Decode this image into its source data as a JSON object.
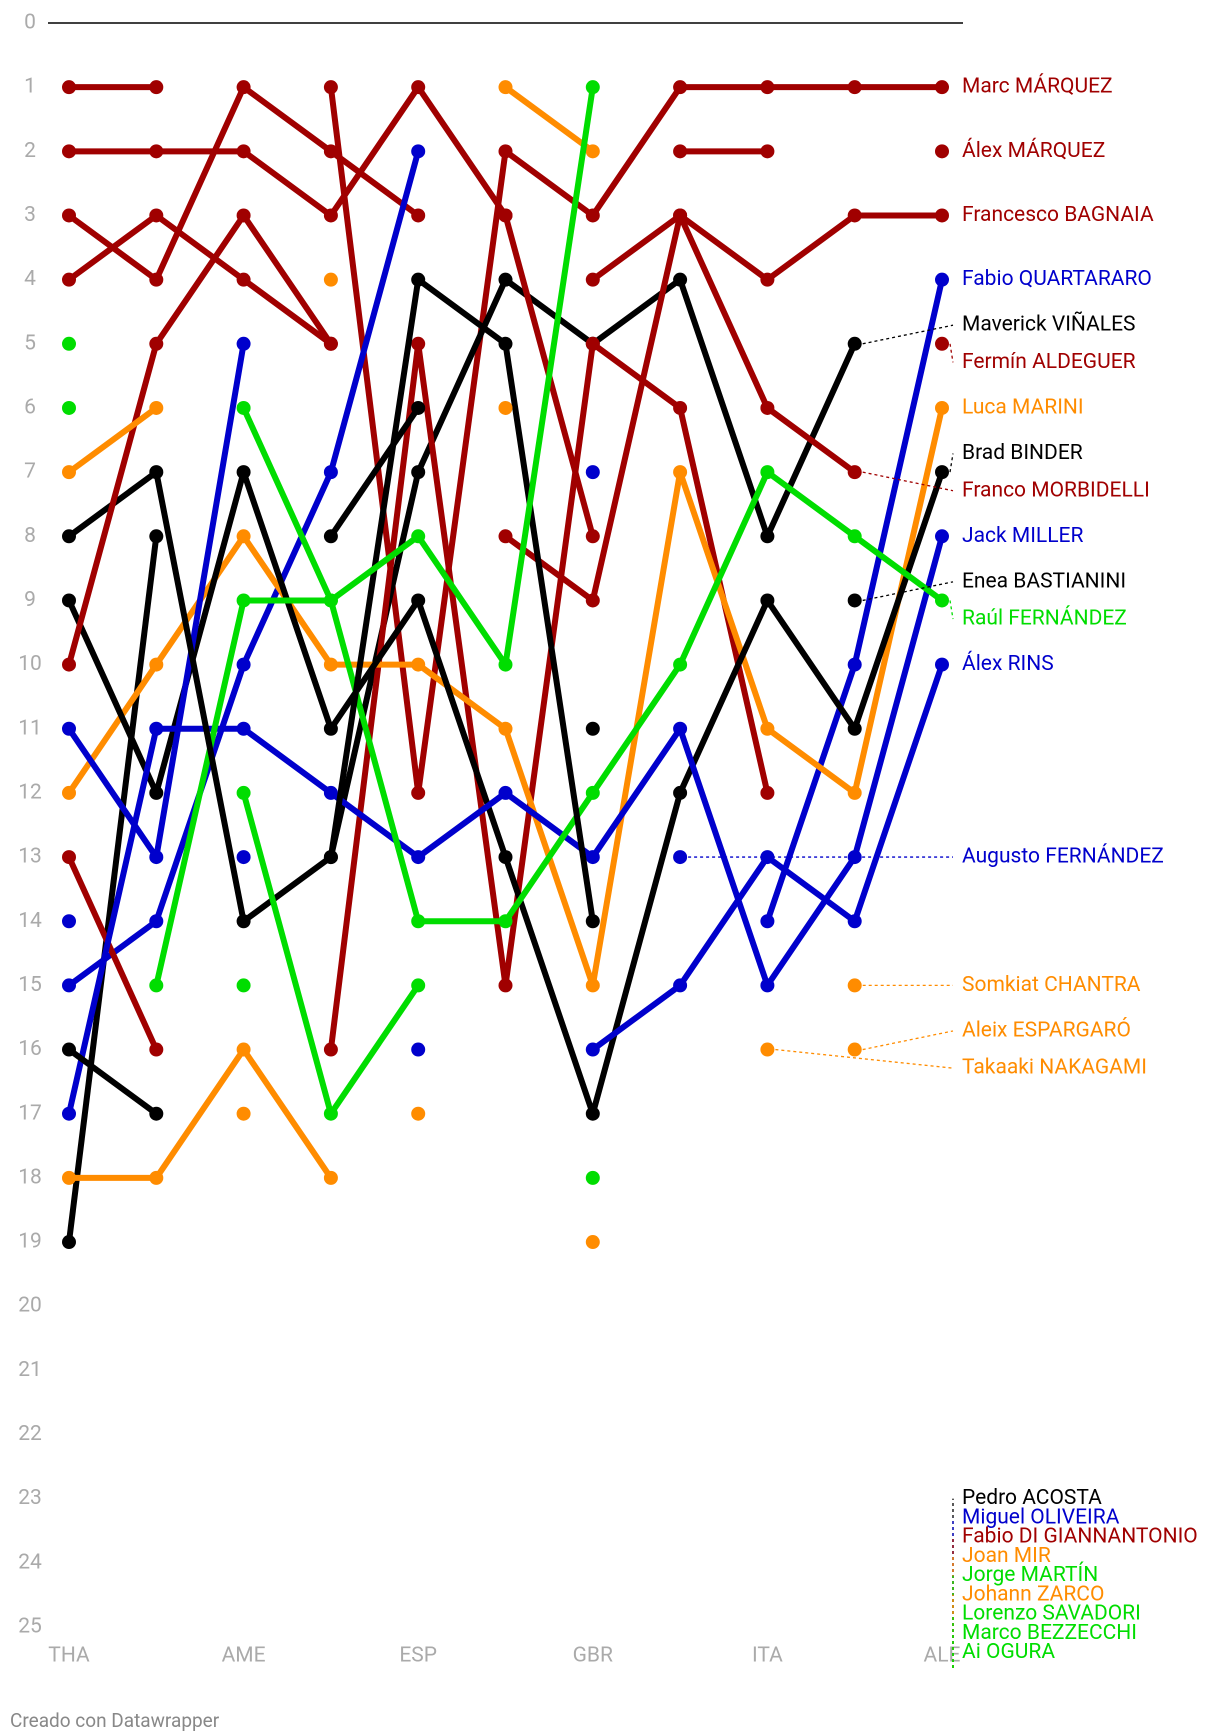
{
  "chart_data": {
    "type": "bump",
    "y_reversed": true,
    "footer": "Creado con Datawrapper",
    "categories": [
      "THA",
      null,
      "AME",
      null,
      "ESP",
      null,
      "GBR",
      null,
      "ITA",
      null,
      "ALE"
    ],
    "ylim": [
      0,
      25
    ],
    "yticks": [
      0,
      1,
      2,
      3,
      4,
      5,
      6,
      7,
      8,
      9,
      10,
      11,
      12,
      13,
      14,
      15,
      16,
      17,
      18,
      19,
      20,
      21,
      22,
      23,
      24,
      25
    ],
    "series": [
      {
        "name": "Marc MÁRQUEZ",
        "color": "#a00000",
        "values": [
          1,
          1,
          null,
          1,
          12,
          2,
          3,
          1,
          1,
          1,
          1
        ]
      },
      {
        "name": "Álex MÁRQUEZ",
        "color": "#a00000",
        "values": [
          2,
          2,
          2,
          3,
          1,
          3,
          null,
          2,
          2,
          null,
          2
        ]
      },
      {
        "name": "Francesco BAGNAIA",
        "color": "#a00000",
        "values": [
          3,
          4,
          1,
          2,
          3,
          null,
          4,
          3,
          4,
          3,
          3
        ]
      },
      {
        "name": "Fabio QUARTARARO",
        "color": "#0000cc",
        "values": [
          15,
          14,
          10,
          7,
          2,
          null,
          7,
          null,
          14,
          10,
          4
        ]
      },
      {
        "name": "Maverick VIÑALES",
        "color": "#000000",
        "values": [
          19,
          8,
          null,
          13,
          7,
          4,
          5,
          4,
          8,
          5,
          null
        ]
      },
      {
        "name": "Fermín ALDEGUER",
        "color": "#a00000",
        "values": [
          13,
          16,
          null,
          16,
          5,
          15,
          5,
          6,
          12,
          null,
          5
        ]
      },
      {
        "name": "Luca MARINI",
        "color": "#ff8c00",
        "values": [
          12,
          10,
          8,
          10,
          10,
          11,
          15,
          7,
          11,
          12,
          6
        ]
      },
      {
        "name": "Brad BINDER",
        "color": "#000000",
        "values": [
          9,
          12,
          7,
          11,
          9,
          13,
          17,
          12,
          9,
          11,
          7
        ]
      },
      {
        "name": "Franco MORBIDELLI",
        "color": "#a00000",
        "values": [
          4,
          3,
          4,
          5,
          null,
          8,
          9,
          3,
          6,
          7,
          null
        ]
      },
      {
        "name": "Jack MILLER",
        "color": "#0000cc",
        "values": [
          17,
          11,
          11,
          12,
          13,
          12,
          13,
          11,
          15,
          13,
          8
        ]
      },
      {
        "name": "Enea BASTIANINI",
        "color": "#000000",
        "values": [
          16,
          17,
          null,
          8,
          6,
          null,
          11,
          null,
          null,
          9,
          null
        ]
      },
      {
        "name": "Raúl FERNÁNDEZ",
        "color": "#00dd00",
        "values": [
          null,
          15,
          9,
          9,
          14,
          14,
          12,
          10,
          7,
          8,
          9
        ]
      },
      {
        "name": "Álex RINS",
        "color": "#0000cc",
        "values": [
          11,
          13,
          5,
          null,
          null,
          null,
          16,
          15,
          13,
          14,
          10
        ]
      },
      {
        "name": "Augusto FERNÁNDEZ",
        "color": "#0000cc",
        "values": [
          null,
          null,
          null,
          null,
          null,
          null,
          null,
          13,
          null,
          null,
          null
        ]
      },
      {
        "name": "Somkiat CHANTRA",
        "color": "#ff8c00",
        "values": [
          null,
          null,
          17,
          null,
          17,
          null,
          19,
          null,
          null,
          15,
          null
        ]
      },
      {
        "name": "Aleix ESPARGARÓ",
        "color": "#ff8c00",
        "values": [
          null,
          null,
          null,
          null,
          null,
          null,
          null,
          null,
          null,
          16,
          null
        ]
      },
      {
        "name": "Takaaki NAKAGAMI",
        "color": "#ff8c00",
        "values": [
          null,
          null,
          null,
          null,
          null,
          null,
          null,
          null,
          16,
          null,
          null
        ]
      },
      {
        "name": "Pedro ACOSTA",
        "color": "#000000",
        "values": [
          8,
          7,
          14,
          13,
          4,
          5,
          14,
          null,
          null,
          null,
          null
        ]
      },
      {
        "name": "Miguel OLIVEIRA",
        "color": "#0000cc",
        "values": [
          14,
          null,
          13,
          null,
          16,
          null,
          null,
          null,
          null,
          null,
          null
        ]
      },
      {
        "name": "Fabio DI GIANNANTONIO",
        "color": "#a00000",
        "values": [
          10,
          5,
          3,
          5,
          null,
          3,
          8,
          null,
          null,
          null,
          null
        ]
      },
      {
        "name": "Joan MIR",
        "color": "#ff8c00",
        "values": [
          7,
          6,
          null,
          4,
          null,
          6,
          null,
          null,
          null,
          null,
          null
        ]
      },
      {
        "name": "Jorge MARTÍN",
        "color": "#00dd00",
        "values": [
          null,
          null,
          null,
          null,
          null,
          null,
          null,
          null,
          null,
          null,
          null
        ]
      },
      {
        "name": "Johann ZARCO",
        "color": "#ff8c00",
        "values": [
          18,
          18,
          16,
          18,
          null,
          1,
          2,
          null,
          null,
          null,
          null
        ]
      },
      {
        "name": "Lorenzo SAVADORI",
        "color": "#00dd00",
        "values": [
          null,
          null,
          15,
          null,
          null,
          null,
          null,
          null,
          null,
          null,
          null
        ]
      },
      {
        "name": "Marco BEZZECCHI",
        "color": "#00dd00",
        "values": [
          6,
          null,
          6,
          9,
          8,
          10,
          1,
          null,
          null,
          null,
          null
        ]
      },
      {
        "name": "Ai OGURA",
        "color": "#00dd00",
        "values": [
          5,
          null,
          12,
          17,
          15,
          null,
          18,
          null,
          null,
          null,
          null
        ]
      }
    ]
  }
}
